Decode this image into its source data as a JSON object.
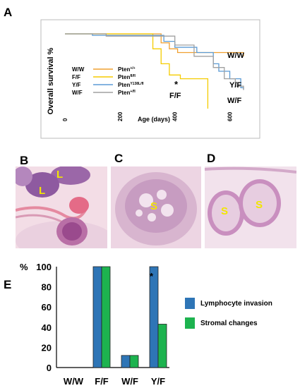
{
  "panels": {
    "a": "A",
    "b": "B",
    "c": "C",
    "d": "D",
    "e": "E"
  },
  "survival": {
    "ylabel": "Overall survival %",
    "xlabel": "Age (days)",
    "xticks": [
      "0",
      "200",
      "400",
      "600"
    ],
    "legend": [
      {
        "code": "W/W",
        "base": "Pten",
        "sup": "+/+",
        "color": "#f0a030"
      },
      {
        "code": "F/F",
        "base": "Pten",
        "sup": "fl/fl",
        "color": "#f5cc00"
      },
      {
        "code": "Y/F",
        "base": "Pten",
        "sup": "Y138L/fl",
        "color": "#5b9bd5"
      },
      {
        "code": "W/F",
        "base": "Pten",
        "sup": "+/fl",
        "color": "#a0a0a0"
      }
    ],
    "curve_labels": {
      "ww": "W/W",
      "ff": "F/F",
      "yf": "Y/F",
      "wf": "W/F",
      "star": "*"
    }
  },
  "histology": {
    "b": {
      "l1": "L",
      "l2": "L"
    },
    "c": {
      "s1": "S"
    },
    "d": {
      "s1": "S",
      "s2": "S"
    }
  },
  "chart_data": [
    {
      "type": "line",
      "xlabel": "Age (days)",
      "ylabel": "Overall survival %",
      "xlim": [
        0,
        650
      ],
      "ylim": [
        0,
        100
      ],
      "series": [
        {
          "name": "W/W",
          "points": [
            [
              0,
              100
            ],
            [
              300,
              100
            ],
            [
              350,
              88
            ],
            [
              380,
              80
            ],
            [
              410,
              75
            ],
            [
              650,
              70
            ]
          ]
        },
        {
          "name": "F/F",
          "points": [
            [
              0,
              100
            ],
            [
              250,
              100
            ],
            [
              320,
              80
            ],
            [
              350,
              60
            ],
            [
              380,
              45
            ],
            [
              420,
              40
            ],
            [
              480,
              40
            ],
            [
              520,
              0
            ]
          ]
        },
        {
          "name": "Y/F",
          "points": [
            [
              0,
              100
            ],
            [
              100,
              98
            ],
            [
              360,
              90
            ],
            [
              400,
              82
            ],
            [
              480,
              75
            ],
            [
              540,
              60
            ],
            [
              560,
              50
            ],
            [
              600,
              40
            ],
            [
              640,
              28
            ],
            [
              650,
              25
            ]
          ]
        },
        {
          "name": "W/F",
          "points": [
            [
              0,
              100
            ],
            [
              150,
              97
            ],
            [
              400,
              85
            ],
            [
              470,
              70
            ],
            [
              540,
              55
            ],
            [
              580,
              40
            ],
            [
              620,
              30
            ],
            [
              650,
              25
            ]
          ]
        }
      ],
      "annotation": "*"
    },
    {
      "type": "bar",
      "ylabel": "%",
      "ylim": [
        0,
        100
      ],
      "yticks": [
        "0",
        "20",
        "40",
        "60",
        "80",
        "100"
      ],
      "categories": [
        "W/W",
        "F/F",
        "W/F",
        "Y/F"
      ],
      "series": [
        {
          "name": "Lymphocyte invasion",
          "color": "#2e75b6",
          "values": [
            0,
            100,
            12,
            100
          ]
        },
        {
          "name": "Stromal changes",
          "color": "#1db34f",
          "values": [
            0,
            100,
            12,
            43
          ]
        }
      ],
      "annotation": "*"
    }
  ]
}
